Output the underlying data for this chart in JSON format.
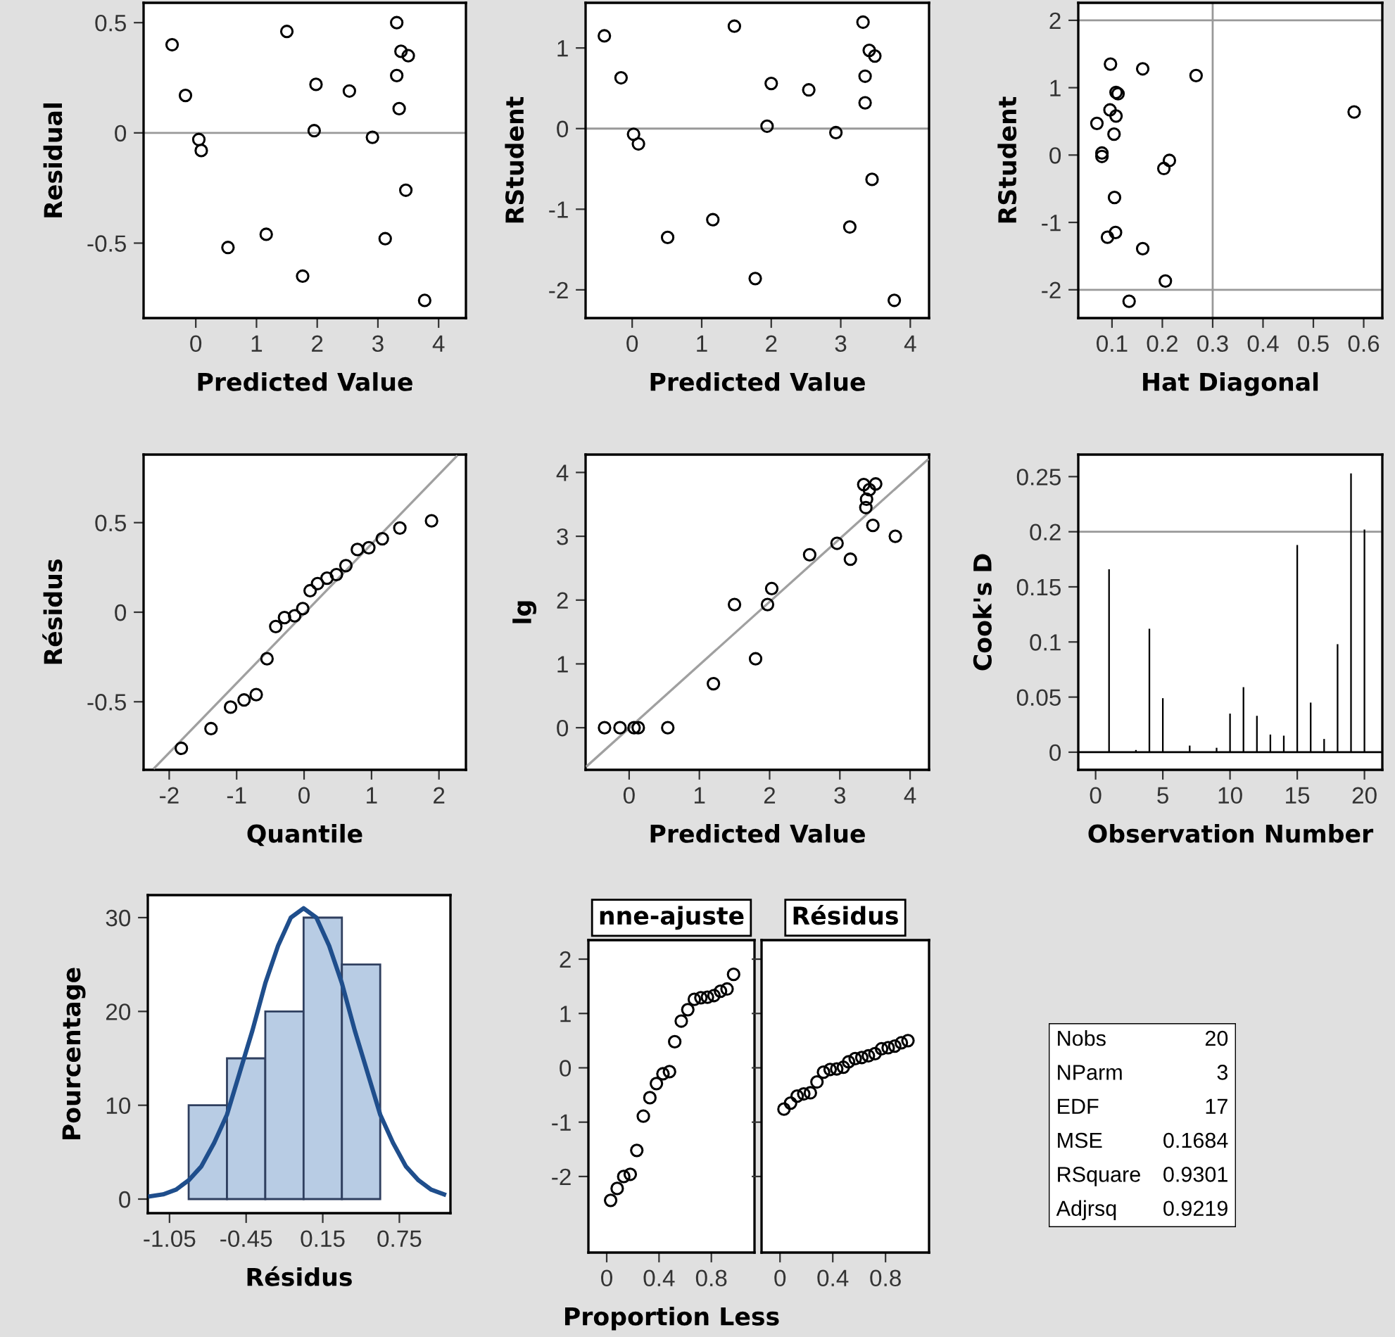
{
  "chart_data": [
    {
      "type": "scatter",
      "xlabel": "Predicted Value",
      "ylabel": "Residual",
      "xlim": [
        -0.86,
        4.45
      ],
      "ylim": [
        -0.84,
        0.59
      ],
      "xticks": [
        0,
        1,
        2,
        3,
        4
      ],
      "yticks": [
        -0.5,
        0,
        0.5
      ],
      "marker": "circle",
      "series": [
        {
          "color": "#000000",
          "x": [
            -0.39,
            -0.17,
            0.05,
            0.09,
            0.53,
            1.16,
            1.5,
            1.76,
            1.95,
            1.98,
            2.53,
            2.91,
            3.12,
            3.31,
            3.31,
            3.35,
            3.38,
            3.5,
            3.46,
            3.77
          ],
          "values": [
            0.4,
            0.17,
            -0.03,
            -0.08,
            -0.52,
            -0.46,
            0.46,
            -0.65,
            0.01,
            0.22,
            0.19,
            -0.02,
            -0.48,
            0.5,
            0.26,
            0.11,
            0.37,
            0.35,
            -0.26,
            -0.76
          ]
        }
      ],
      "ref_lines": [
        {
          "axis": "y",
          "value": 0,
          "color": "#999999"
        }
      ]
    },
    {
      "type": "scatter",
      "xlabel": "Predicted Value",
      "ylabel": "RStudent",
      "xlim": [
        -0.67,
        4.27
      ],
      "ylim": [
        -2.35,
        1.56
      ],
      "xticks": [
        0,
        1,
        2,
        3,
        4
      ],
      "yticks": [
        -2,
        -1,
        0,
        1
      ],
      "marker": "circle",
      "series": [
        {
          "color": "#000000",
          "x": [
            -0.4,
            -0.16,
            0.02,
            0.09,
            0.51,
            1.16,
            1.47,
            1.77,
            1.94,
            2.0,
            2.54,
            2.93,
            3.13,
            3.32,
            3.35,
            3.35,
            3.41,
            3.49,
            3.45,
            3.77
          ],
          "values": [
            1.15,
            0.63,
            -0.07,
            -0.19,
            -1.35,
            -1.13,
            1.27,
            -1.86,
            0.03,
            0.56,
            0.48,
            -0.05,
            -1.22,
            1.32,
            0.65,
            0.32,
            0.97,
            0.9,
            -0.63,
            -2.13
          ]
        }
      ],
      "ref_lines": [
        {
          "axis": "y",
          "value": 0,
          "color": "#999999"
        }
      ]
    },
    {
      "type": "scatter",
      "xlabel": "Hat Diagonal",
      "ylabel": "RStudent",
      "xlim": [
        0.033,
        0.637
      ],
      "ylim": [
        -2.42,
        2.26
      ],
      "xticks": [
        0.1,
        0.2,
        0.3,
        0.4,
        0.5,
        0.6
      ],
      "yticks": [
        -2,
        -1,
        0,
        1,
        2
      ],
      "marker": "circle",
      "series": [
        {
          "color": "#000000",
          "x": [
            0.097,
            0.161,
            0.267,
            0.581,
            0.07,
            0.096,
            0.108,
            0.112,
            0.108,
            0.104,
            0.08,
            0.08,
            0.214,
            0.203,
            0.105,
            0.091,
            0.107,
            0.161,
            0.206,
            0.134
          ],
          "values": [
            1.35,
            1.28,
            1.18,
            0.64,
            0.47,
            0.67,
            0.93,
            0.91,
            0.58,
            0.31,
            0.03,
            -0.02,
            -0.08,
            -0.2,
            -0.63,
            -1.22,
            -1.15,
            -1.39,
            -1.87,
            -2.17
          ]
        }
      ],
      "ref_lines": [
        {
          "axis": "y",
          "value": 2,
          "color": "#999999"
        },
        {
          "axis": "y",
          "value": -2,
          "color": "#999999"
        },
        {
          "axis": "x",
          "value": 0.3,
          "color": "#999999"
        }
      ]
    },
    {
      "type": "scatter",
      "xlabel": "Quantile",
      "ylabel": "Résidus",
      "xlim": [
        -2.38,
        2.4
      ],
      "ylim": [
        -0.88,
        0.88
      ],
      "xticks": [
        -2,
        -1,
        0,
        1,
        2
      ],
      "yticks": [
        -0.5,
        0,
        0.5
      ],
      "marker": "circle",
      "series": [
        {
          "type": "line",
          "marker": "none",
          "color": "#a0a0a0",
          "x": [
            -2.22,
            2.26
          ],
          "values": [
            -0.87,
            0.87
          ]
        },
        {
          "color": "#000000",
          "x": [
            -1.82,
            -1.38,
            -1.09,
            -0.89,
            -0.71,
            -0.55,
            -0.42,
            -0.29,
            -0.14,
            -0.02,
            0.09,
            0.2,
            0.34,
            0.48,
            0.62,
            0.79,
            0.96,
            1.16,
            1.42,
            1.89
          ],
          "values": [
            -0.76,
            -0.65,
            -0.53,
            -0.49,
            -0.46,
            -0.26,
            -0.08,
            -0.03,
            -0.02,
            0.02,
            0.12,
            0.16,
            0.19,
            0.21,
            0.26,
            0.35,
            0.36,
            0.41,
            0.47,
            0.51
          ]
        }
      ]
    },
    {
      "type": "scatter",
      "xlabel": "Predicted Value",
      "ylabel": "lg",
      "xlim": [
        -0.62,
        4.27
      ],
      "ylim": [
        -0.66,
        4.28
      ],
      "xticks": [
        0,
        1,
        2,
        3,
        4
      ],
      "yticks": [
        0,
        1,
        2,
        3,
        4
      ],
      "marker": "circle",
      "series": [
        {
          "type": "line",
          "marker": "none",
          "color": "#a0a0a0",
          "x": [
            -0.6,
            4.25
          ],
          "values": [
            -0.6,
            4.2
          ]
        },
        {
          "color": "#000000",
          "x": [
            -0.35,
            -0.13,
            0.07,
            0.13,
            0.55,
            1.2,
            1.5,
            1.8,
            1.97,
            2.03,
            2.57,
            2.96,
            3.15,
            3.34,
            3.38,
            3.37,
            3.42,
            3.51,
            3.47,
            3.79
          ],
          "values": [
            0,
            0,
            0,
            0,
            0,
            0.69,
            1.93,
            1.08,
            1.93,
            2.18,
            2.71,
            2.89,
            2.64,
            3.81,
            3.58,
            3.45,
            3.73,
            3.82,
            3.17,
            3.0
          ]
        }
      ]
    },
    {
      "type": "bar",
      "xlabel": "Observation Number",
      "ylabel": "Cook's D",
      "xlim": [
        -1.29,
        21.33
      ],
      "ylim": [
        -0.016,
        0.27
      ],
      "xticks": [
        0,
        5,
        10,
        15,
        20
      ],
      "yticks": [
        0,
        0.05,
        0.1,
        0.15,
        0.2,
        0.25
      ],
      "series": [
        {
          "color": "#000000",
          "x": [
            1,
            2,
            3,
            4,
            5,
            6,
            7,
            8,
            9,
            10,
            11,
            12,
            13,
            14,
            15,
            16,
            17,
            18,
            19,
            20
          ],
          "values": [
            0.166,
            0,
            0.002,
            0.112,
            0.049,
            0,
            0.006,
            0,
            0.004,
            0.035,
            0.059,
            0.033,
            0.016,
            0.015,
            0.188,
            0.045,
            0.012,
            0.098,
            0.253,
            0.202
          ]
        }
      ],
      "ref_lines": [
        {
          "axis": "y",
          "value": 0.2,
          "color": "#999999"
        },
        {
          "axis": "y",
          "value": 0,
          "color": "#000000"
        }
      ]
    },
    {
      "type": "histogram",
      "xlabel": "Résidus",
      "ylabel": "Pourcentage",
      "xlim": [
        -1.22,
        1.15
      ],
      "ylim": [
        -1.5,
        32.4
      ],
      "xticks": [
        -1.05,
        -0.45,
        0.15,
        0.75
      ],
      "yticks": [
        0,
        10,
        20,
        30
      ],
      "bins": [
        -0.9,
        -0.6,
        -0.3,
        0,
        0.3,
        0.6
      ],
      "values": [
        10,
        15,
        20,
        30,
        25
      ],
      "color": "#b8cce4",
      "series": [
        {
          "type": "line",
          "marker": "none",
          "color": "#1f4e8c",
          "x": [
            -1.2,
            -1.1,
            -1.0,
            -0.9,
            -0.8,
            -0.7,
            -0.6,
            -0.5,
            -0.4,
            -0.3,
            -0.2,
            -0.1,
            0,
            0.1,
            0.2,
            0.3,
            0.4,
            0.5,
            0.6,
            0.7,
            0.8,
            0.9,
            1.0,
            1.1
          ],
          "values": [
            0.3,
            0.5,
            1,
            2,
            3.5,
            6,
            9,
            13.5,
            18,
            23,
            27,
            30,
            31,
            30,
            27,
            23,
            18,
            13.5,
            9,
            6,
            3.5,
            2,
            1,
            0.5
          ]
        }
      ]
    },
    {
      "type": "scatter",
      "title": "nne-ajuste",
      "xlabel": "Proportion Less",
      "xlim": [
        -0.14,
        1.13
      ],
      "ylim": [
        -3.4,
        2.35
      ],
      "xticks": [
        0,
        0.4,
        0.8
      ],
      "yticks": [
        -2,
        -1,
        0,
        1,
        2
      ],
      "marker": "circle",
      "series": [
        {
          "color": "#000000",
          "x": [
            0.03,
            0.08,
            0.13,
            0.18,
            0.23,
            0.28,
            0.33,
            0.38,
            0.43,
            0.48,
            0.52,
            0.57,
            0.62,
            0.67,
            0.72,
            0.77,
            0.82,
            0.87,
            0.92,
            0.97
          ],
          "values": [
            -2.44,
            -2.22,
            -2.0,
            -1.96,
            -1.52,
            -0.89,
            -0.55,
            -0.29,
            -0.11,
            -0.07,
            0.48,
            0.86,
            1.07,
            1.26,
            1.29,
            1.3,
            1.33,
            1.41,
            1.45,
            1.72
          ]
        }
      ]
    },
    {
      "type": "scatter",
      "title": "Résidus",
      "xlim": [
        -0.14,
        1.13
      ],
      "ylim": [
        -3.4,
        2.35
      ],
      "xticks": [
        0,
        0.4,
        0.8
      ],
      "yticks": [
        -2,
        -1,
        0,
        1,
        2
      ],
      "marker": "circle",
      "tick_labels": "x",
      "series": [
        {
          "color": "#000000",
          "x": [
            0.03,
            0.08,
            0.13,
            0.18,
            0.23,
            0.28,
            0.33,
            0.38,
            0.43,
            0.48,
            0.52,
            0.57,
            0.62,
            0.67,
            0.72,
            0.77,
            0.82,
            0.87,
            0.92,
            0.97
          ],
          "values": [
            -0.76,
            -0.65,
            -0.52,
            -0.48,
            -0.46,
            -0.26,
            -0.08,
            -0.03,
            -0.02,
            0.01,
            0.11,
            0.17,
            0.19,
            0.22,
            0.26,
            0.35,
            0.37,
            0.4,
            0.46,
            0.5
          ]
        }
      ]
    },
    {
      "type": "other",
      "categories": [
        "Nobs",
        "NParm",
        "EDF",
        "MSE",
        "RSquare",
        "Adjrsq"
      ],
      "values": [
        20,
        3,
        17,
        0.1684,
        0.9301,
        0.9219
      ],
      "data_labels": true
    }
  ]
}
